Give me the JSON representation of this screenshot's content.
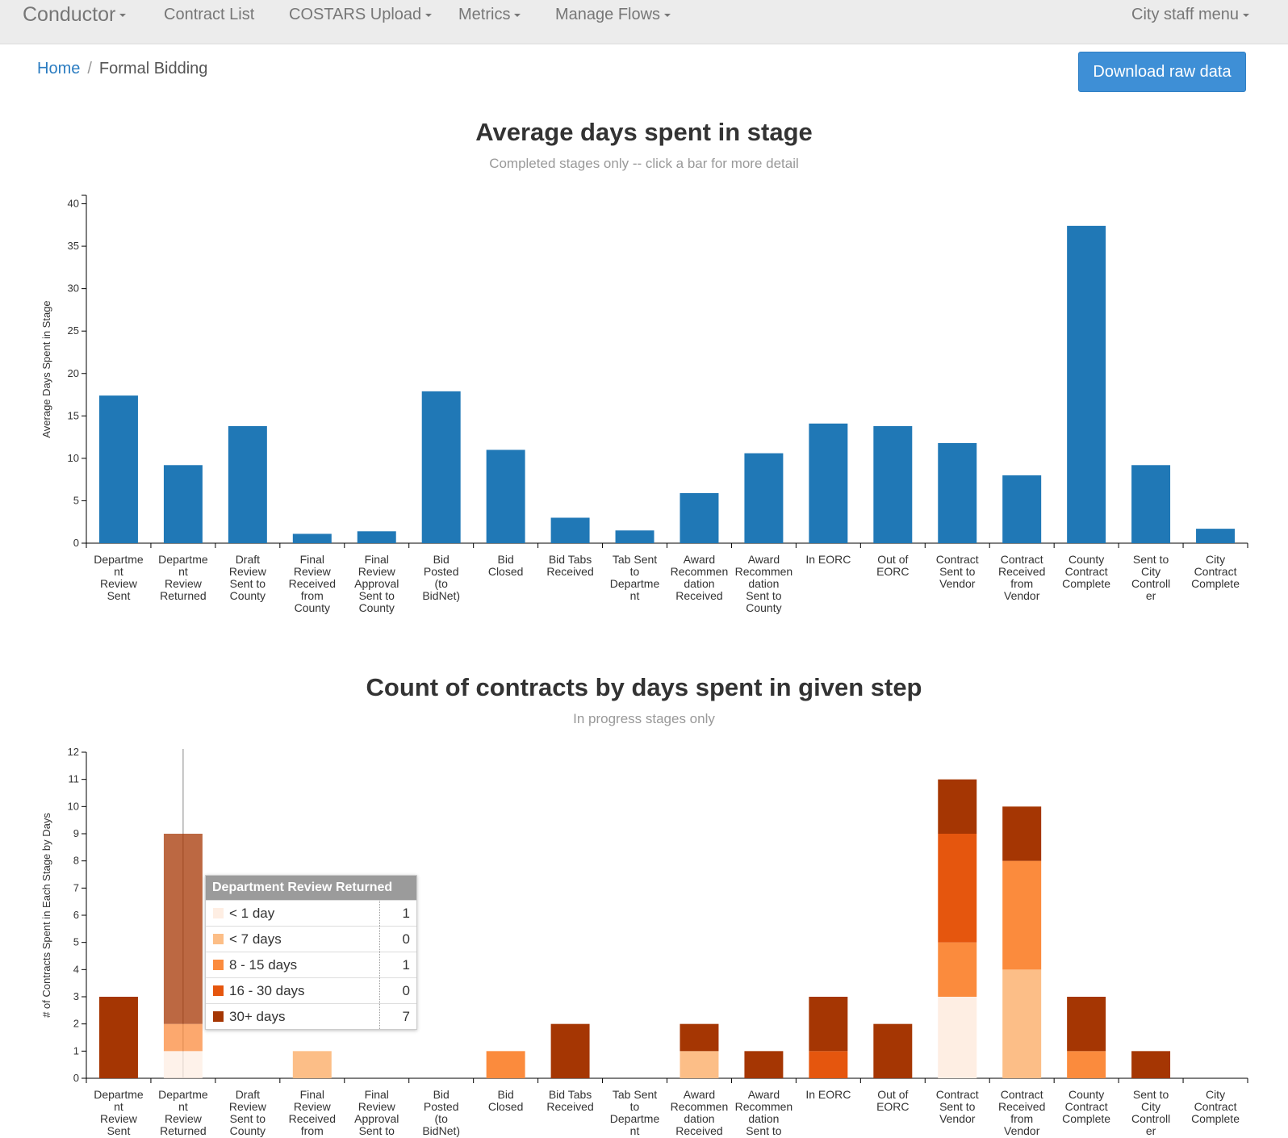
{
  "nav": {
    "brand": "Conductor",
    "items": [
      {
        "label": "Contract List",
        "dropdown": false
      },
      {
        "label": "COSTARS Upload",
        "dropdown": true
      },
      {
        "label": "Metrics",
        "dropdown": true
      },
      {
        "label": "Manage Flows",
        "dropdown": true
      }
    ],
    "right": {
      "label": "City staff menu",
      "dropdown": true
    }
  },
  "breadcrumb": {
    "home": "Home",
    "separator": "/",
    "current": "Formal Bidding"
  },
  "download_button": "Download raw data",
  "categories": [
    "Department Review Sent",
    "Department Review Returned",
    "Draft Review Sent to County",
    "Final Review Received from County",
    "Final Review Approval Sent to County",
    "Bid Posted (to BidNet)",
    "Bid Closed",
    "Bid Tabs Received",
    "Tab Sent to Department",
    "Award Recommendation Received",
    "Award Recommendation Sent to County",
    "In EORC",
    "Out of EORC",
    "Contract Sent to Vendor",
    "Contract Received from Vendor",
    "County Contract Complete",
    "Sent to City Controller",
    "City Contract Complete"
  ],
  "category_lines": [
    [
      "Departme",
      "nt",
      "Review",
      "Sent"
    ],
    [
      "Departme",
      "nt",
      "Review",
      "Returned"
    ],
    [
      "Draft",
      "Review",
      "Sent to",
      "County"
    ],
    [
      "Final",
      "Review",
      "Received",
      "from",
      "County"
    ],
    [
      "Final",
      "Review",
      "Approval",
      "Sent to",
      "County"
    ],
    [
      "Bid",
      "Posted",
      "(to",
      "BidNet)"
    ],
    [
      "Bid",
      "Closed"
    ],
    [
      "Bid Tabs",
      "Received"
    ],
    [
      "Tab Sent",
      "to",
      "Departme",
      "nt"
    ],
    [
      "Award",
      "Recommen",
      "dation",
      "Received"
    ],
    [
      "Award",
      "Recommen",
      "dation",
      "Sent to",
      "County"
    ],
    [
      "In EORC"
    ],
    [
      "Out of",
      "EORC"
    ],
    [
      "Contract",
      "Sent to",
      "Vendor"
    ],
    [
      "Contract",
      "Received",
      "from",
      "Vendor"
    ],
    [
      "County",
      "Contract",
      "Complete"
    ],
    [
      "Sent to",
      "City",
      "Controll",
      "er"
    ],
    [
      "City",
      "Contract",
      "Complete"
    ]
  ],
  "chart_data": [
    {
      "type": "bar",
      "title": "Average days spent in stage",
      "subtitle": "Completed stages only -- click a bar for more detail",
      "ylabel": "Average Days Spent in Stage",
      "ylim": [
        0,
        41
      ],
      "yticks": [
        0,
        5,
        10,
        15,
        20,
        25,
        30,
        35,
        40
      ],
      "color": "#2078b6",
      "values": [
        17.4,
        9.2,
        13.8,
        1.1,
        1.4,
        17.9,
        11.0,
        3.0,
        1.5,
        5.9,
        10.6,
        14.1,
        13.8,
        11.8,
        8.0,
        37.4,
        9.2,
        1.7
      ]
    },
    {
      "type": "bar",
      "stacked": true,
      "title": "Count of contracts by days spent in given step",
      "subtitle": "In progress stages only",
      "ylabel": "# of Contracts Spent in Each Stage by Days",
      "ylim": [
        0,
        12
      ],
      "yticks": [
        0,
        1,
        2,
        3,
        4,
        5,
        6,
        7,
        8,
        9,
        10,
        11,
        12
      ],
      "series": [
        {
          "name": "< 1 day",
          "color": "#feeee3",
          "values": [
            0,
            1,
            0,
            0,
            0,
            0,
            0,
            0,
            0,
            0,
            0,
            0,
            0,
            3,
            0,
            0,
            0,
            0
          ]
        },
        {
          "name": "< 7 days",
          "color": "#fcbe87",
          "values": [
            0,
            0,
            0,
            1,
            0,
            0,
            0,
            0,
            0,
            1,
            0,
            0,
            0,
            0,
            4,
            0,
            0,
            0
          ]
        },
        {
          "name": "8 - 15 days",
          "color": "#fb8b3d",
          "values": [
            0,
            1,
            0,
            0,
            0,
            0,
            1,
            0,
            0,
            0,
            0,
            0,
            0,
            2,
            4,
            1,
            0,
            0
          ]
        },
        {
          "name": "16 - 30 days",
          "color": "#e5560e",
          "values": [
            0,
            0,
            0,
            0,
            0,
            0,
            0,
            0,
            0,
            0,
            0,
            1,
            0,
            4,
            0,
            0,
            0,
            0
          ]
        },
        {
          "name": "30+ days",
          "color": "#a53603",
          "values": [
            3,
            7,
            0,
            0,
            0,
            0,
            0,
            2,
            0,
            1,
            1,
            2,
            2,
            2,
            2,
            2,
            1,
            0
          ]
        }
      ],
      "highlighted_category": "Department Review Returned"
    }
  ],
  "tooltip": {
    "title": "Department Review Returned",
    "rows": [
      {
        "label": "< 1 day",
        "value": "1",
        "color": "#feeee3"
      },
      {
        "label": "< 7 days",
        "value": "0",
        "color": "#fcbe87"
      },
      {
        "label": "8 - 15 days",
        "value": "1",
        "color": "#fb8b3d"
      },
      {
        "label": "16 - 30 days",
        "value": "0",
        "color": "#e5560e"
      },
      {
        "label": "30+ days",
        "value": "7",
        "color": "#a53603"
      }
    ]
  }
}
